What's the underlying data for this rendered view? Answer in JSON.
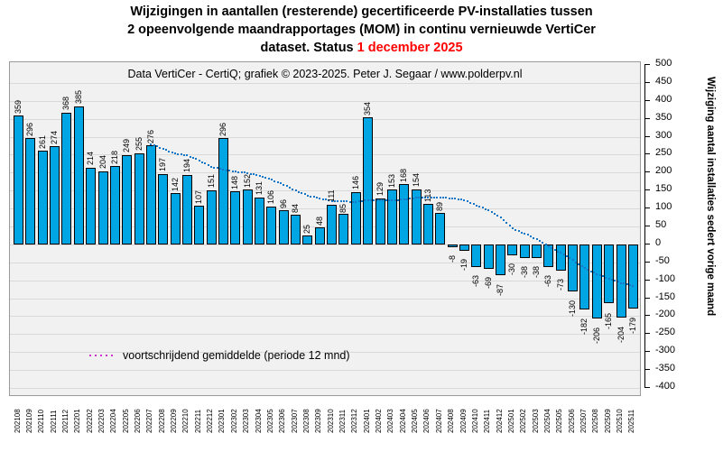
{
  "title": {
    "lines": [
      "Wijzigingen in aantallen (resterende) gecertificeerde PV-installaties tussen",
      "2 opeenvolgende maandrapportages (MOM) in continu vernieuwde VertiCer",
      "dataset. Status"
    ],
    "status_date": "1 december 2025",
    "status_color": "#ff0000"
  },
  "subtitle": "Data VertiCer - CertiQ; grafiek © 2023-2025.  Peter J. Segaar / www.polderpv.nl",
  "legend": {
    "dot_color": "#cc33cc",
    "label": "voortschrijdend gemiddelde  (periode 12 mnd)"
  },
  "y_axis": {
    "title": "Wijziging aantal installaties sedert vorige maand",
    "max": 500,
    "min": -400,
    "step": 50
  },
  "chart_data": {
    "type": "bar",
    "title": "Wijzigingen in aantallen (resterende) gecertificeerde PV-installaties tussen 2 opeenvolgende maandrapportages (MOM) in continu vernieuwde VertiCer dataset. Status 1 december 2025",
    "xlabel": "",
    "ylabel": "Wijziging aantal installaties sedert vorige maand",
    "ylim": [
      -400,
      500
    ],
    "grid": true,
    "bar_color": "#00a6e4",
    "line_color": "#1878c8",
    "categories": [
      "202108",
      "202109",
      "202110",
      "202111",
      "202112",
      "202201",
      "202202",
      "202203",
      "202204",
      "202205",
      "202206",
      "202207",
      "202208",
      "202209",
      "202210",
      "202211",
      "202212",
      "202301",
      "202302",
      "202303",
      "202304",
      "202305",
      "202306",
      "202307",
      "202308",
      "202309",
      "202310",
      "202311",
      "202312",
      "202401",
      "202402",
      "202403",
      "202404",
      "202405",
      "202406",
      "202407",
      "202408",
      "202409",
      "202410",
      "202411",
      "202412",
      "202501",
      "202502",
      "202503",
      "202504",
      "202505",
      "202506",
      "202507",
      "202508",
      "202509",
      "202510",
      "202511"
    ],
    "values": [
      359,
      296,
      261,
      274,
      368,
      385,
      214,
      204,
      218,
      249,
      255,
      276,
      197,
      142,
      194,
      107,
      151,
      296,
      148,
      152,
      131,
      106,
      96,
      84,
      25,
      48,
      111,
      85,
      146,
      354,
      129,
      153,
      168,
      154,
      113,
      89,
      -8,
      -19,
      -63,
      -69,
      -87,
      -30,
      -38,
      -38,
      -63,
      -73,
      -130,
      -182,
      -206,
      -165,
      -204,
      -179
    ],
    "moving_average": {
      "name": "voortschrijdend gemiddelde (periode 12 mnd)",
      "window": 12,
      "values": [
        null,
        null,
        null,
        null,
        null,
        null,
        null,
        null,
        null,
        null,
        null,
        279.9,
        266.4,
        253.6,
        248.0,
        234.1,
        216.0,
        208.6,
        203.1,
        198.8,
        191.5,
        179.6,
        166.3,
        150.3,
        136.0,
        128.2,
        121.3,
        119.4,
        119.0,
        123.8,
        122.3,
        122.3,
        125.4,
        129.4,
        130.8,
        131.3,
        128.5,
        122.9,
        108.4,
        95.6,
        76.2,
        44.2,
        30.3,
        14.3,
        -4.9,
        -23.8,
        -44.1,
        -66.7,
        -83.2,
        -95.3,
        -107.1,
        -116.3
      ]
    }
  }
}
